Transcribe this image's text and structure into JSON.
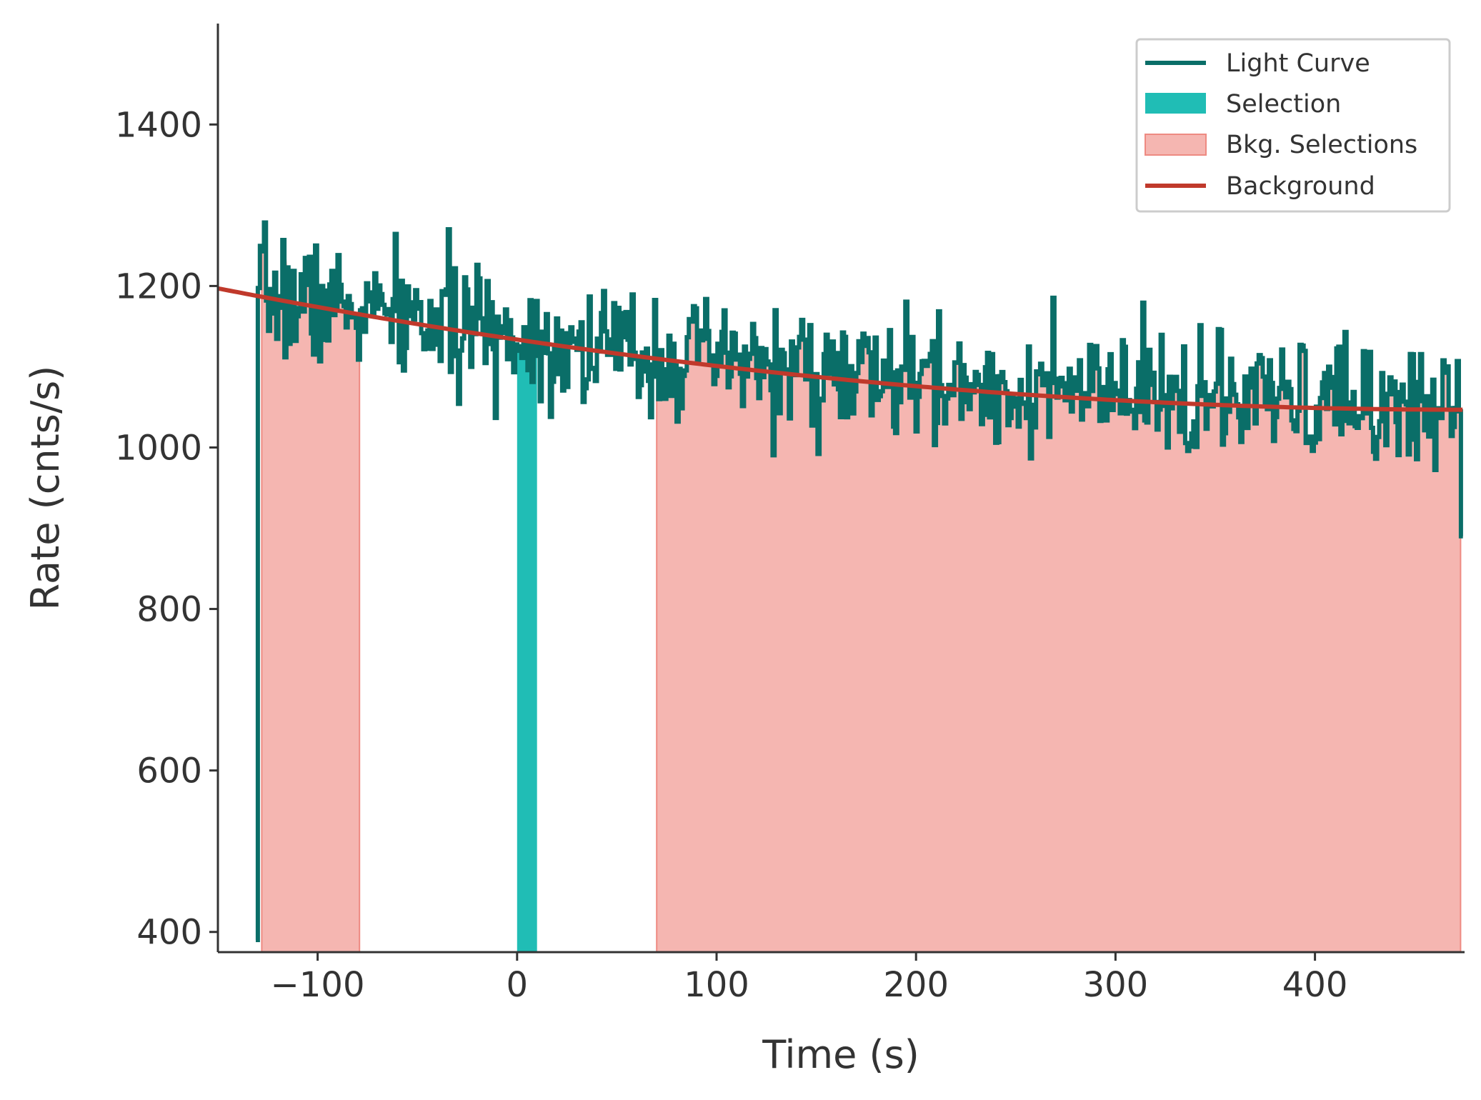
{
  "chart_data": {
    "type": "line",
    "title": "",
    "xlabel": "Time (s)",
    "ylabel": "Rate (cnts/s)",
    "xlim": [
      -150,
      475
    ],
    "ylim": [
      375,
      1525
    ],
    "xticks": [
      -100,
      0,
      100,
      200,
      300,
      400
    ],
    "xtick_labels": [
      "−100",
      "0",
      "100",
      "200",
      "300",
      "400"
    ],
    "yticks": [
      400,
      600,
      800,
      1000,
      1200,
      1400
    ],
    "ytick_labels": [
      "400",
      "600",
      "800",
      "1000",
      "1200",
      "1400"
    ],
    "grid": false,
    "legend_position": "top-right",
    "legend": [
      {
        "label": "Light Curve",
        "kind": "line",
        "color": "#0a6e68"
      },
      {
        "label": "Selection",
        "kind": "patch",
        "color": "#20bdb5"
      },
      {
        "label": "Bkg. Selections",
        "kind": "patch",
        "color": "#f5b6b1"
      },
      {
        "label": "Background",
        "kind": "line",
        "color": "#c0392b"
      }
    ],
    "light_curve": {
      "name": "Light Curve",
      "color": "#0a6e68",
      "bin_width": 1.024,
      "start_time": -131,
      "start_value": 390,
      "noise_sigma": 38,
      "seed": 7,
      "end_time": 474,
      "end_value": 890
    },
    "selection": {
      "name": "Selection",
      "range": [
        0,
        10
      ],
      "color": "#20bdb5"
    },
    "bkg_selections": {
      "name": "Bkg. Selections",
      "ranges": [
        [
          -128,
          -79
        ],
        [
          70,
          473
        ]
      ],
      "color": "#f5b6b1",
      "edge_color": "#ee8a82"
    },
    "background": {
      "name": "Background",
      "color": "#c0392b",
      "model": "quadratic",
      "x": [
        -150,
        0,
        100,
        200,
        300,
        400,
        475
      ],
      "y": [
        1198,
        1132,
        1100,
        1077,
        1060,
        1049,
        1046
      ]
    }
  }
}
